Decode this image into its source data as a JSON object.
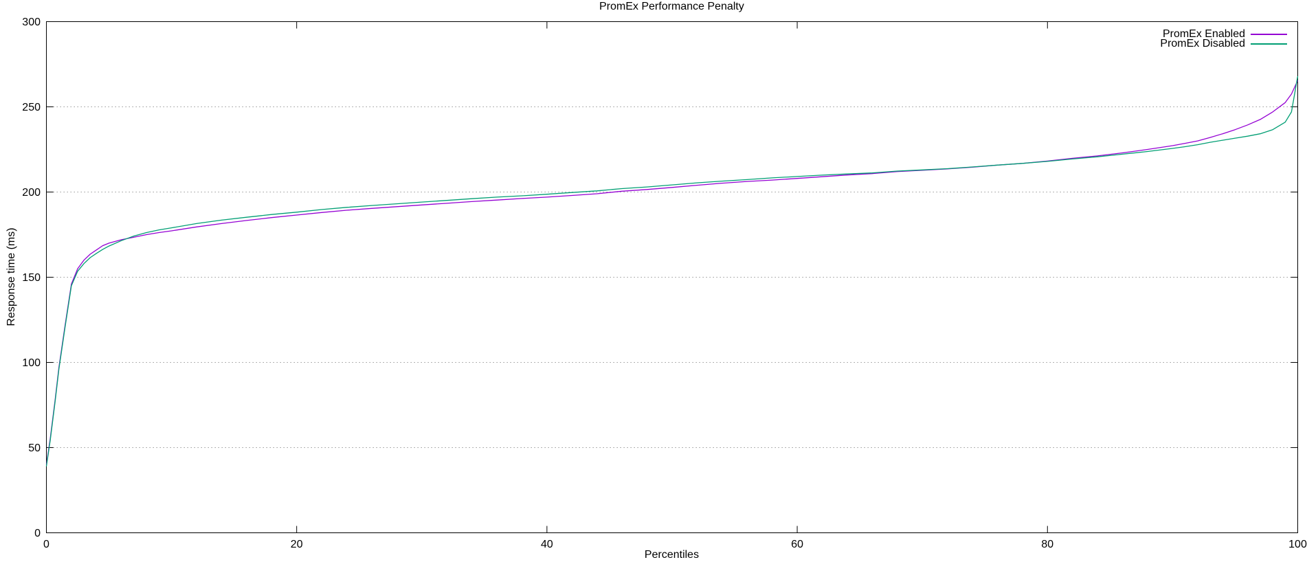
{
  "chart_data": {
    "type": "line",
    "title": "PromEx Performance Penalty",
    "xlabel": "Percentiles",
    "ylabel": "Response time (ms)",
    "xlim": [
      0,
      100
    ],
    "ylim": [
      0,
      300
    ],
    "xticks": [
      0,
      20,
      40,
      60,
      80,
      100
    ],
    "yticks": [
      0,
      50,
      100,
      150,
      200,
      250,
      300
    ],
    "grid": "horizontal-dotted-lines-at-yticks",
    "legend_position": "top-right-inside",
    "colors": {
      "axis": "#000000",
      "grid": "#999999",
      "background": "#ffffff"
    },
    "series": [
      {
        "name": "PromEx Enabled",
        "color": "#9400D3",
        "points": [
          [
            0,
            40
          ],
          [
            0.3,
            55
          ],
          [
            0.7,
            78
          ],
          [
            1,
            97
          ],
          [
            1.5,
            122
          ],
          [
            2,
            146
          ],
          [
            2.5,
            155
          ],
          [
            3,
            160
          ],
          [
            3.5,
            163.5
          ],
          [
            4,
            166
          ],
          [
            4.5,
            168.5
          ],
          [
            5,
            170
          ],
          [
            6,
            172
          ],
          [
            7,
            173.5
          ],
          [
            8,
            175
          ],
          [
            9,
            176.2
          ],
          [
            10,
            177.2
          ],
          [
            12,
            179.5
          ],
          [
            14,
            181.5
          ],
          [
            16,
            183.3
          ],
          [
            18,
            185
          ],
          [
            20,
            186.5
          ],
          [
            22,
            188
          ],
          [
            24,
            189.3
          ],
          [
            26,
            190.4
          ],
          [
            28,
            191.4
          ],
          [
            30,
            192.4
          ],
          [
            32,
            193.4
          ],
          [
            34,
            194.4
          ],
          [
            36,
            195.3
          ],
          [
            38,
            196.2
          ],
          [
            40,
            197
          ],
          [
            42,
            198
          ],
          [
            44,
            199
          ],
          [
            46,
            200.5
          ],
          [
            48,
            201.5
          ],
          [
            50,
            202.7
          ],
          [
            52,
            204
          ],
          [
            54,
            205.2
          ],
          [
            56,
            206.2
          ],
          [
            58,
            207
          ],
          [
            60,
            208
          ],
          [
            62,
            209
          ],
          [
            64,
            210
          ],
          [
            66,
            210.8
          ],
          [
            68,
            212
          ],
          [
            70,
            212.8
          ],
          [
            72,
            213.6
          ],
          [
            74,
            214.6
          ],
          [
            76,
            215.8
          ],
          [
            78,
            216.8
          ],
          [
            80,
            218.2
          ],
          [
            82,
            219.8
          ],
          [
            84,
            221.2
          ],
          [
            86,
            223
          ],
          [
            88,
            225
          ],
          [
            90,
            227.2
          ],
          [
            91,
            228.6
          ],
          [
            92,
            230
          ],
          [
            93,
            232
          ],
          [
            94,
            234.2
          ],
          [
            95,
            236.6
          ],
          [
            96,
            239.4
          ],
          [
            97,
            242.6
          ],
          [
            98,
            247
          ],
          [
            99,
            252.5
          ],
          [
            99.5,
            257.5
          ],
          [
            100,
            265.5
          ]
        ]
      },
      {
        "name": "PromEx Disabled",
        "color": "#009E73",
        "points": [
          [
            0,
            39
          ],
          [
            0.3,
            54
          ],
          [
            0.7,
            77
          ],
          [
            1,
            96
          ],
          [
            1.5,
            121
          ],
          [
            2,
            145
          ],
          [
            2.5,
            153.5
          ],
          [
            3,
            158
          ],
          [
            3.5,
            161.5
          ],
          [
            4,
            164
          ],
          [
            4.5,
            166.3
          ],
          [
            5,
            168.3
          ],
          [
            6,
            171.5
          ],
          [
            7,
            174.2
          ],
          [
            8,
            176.2
          ],
          [
            9,
            177.8
          ],
          [
            10,
            179
          ],
          [
            12,
            181.5
          ],
          [
            14,
            183.5
          ],
          [
            16,
            185.2
          ],
          [
            18,
            186.8
          ],
          [
            20,
            188.2
          ],
          [
            22,
            189.7
          ],
          [
            24,
            191
          ],
          [
            26,
            192.1
          ],
          [
            28,
            193.1
          ],
          [
            30,
            194.1
          ],
          [
            32,
            195.1
          ],
          [
            34,
            196.1
          ],
          [
            36,
            197
          ],
          [
            38,
            197.8
          ],
          [
            40,
            198.7
          ],
          [
            42,
            199.7
          ],
          [
            44,
            200.7
          ],
          [
            46,
            202
          ],
          [
            48,
            203
          ],
          [
            50,
            204.2
          ],
          [
            52,
            205.4
          ],
          [
            54,
            206.4
          ],
          [
            56,
            207.3
          ],
          [
            58,
            208.3
          ],
          [
            60,
            209.1
          ],
          [
            62,
            209.9
          ],
          [
            64,
            210.6
          ],
          [
            66,
            211.2
          ],
          [
            68,
            212.3
          ],
          [
            70,
            213
          ],
          [
            72,
            213.7
          ],
          [
            74,
            214.7
          ],
          [
            76,
            215.8
          ],
          [
            78,
            216.8
          ],
          [
            80,
            218
          ],
          [
            82,
            219.4
          ],
          [
            84,
            220.7
          ],
          [
            86,
            222.2
          ],
          [
            88,
            223.8
          ],
          [
            90,
            225.6
          ],
          [
            91,
            226.6
          ],
          [
            92,
            227.8
          ],
          [
            93,
            229.2
          ],
          [
            94,
            230.4
          ],
          [
            95,
            231.6
          ],
          [
            96,
            232.8
          ],
          [
            97,
            234.2
          ],
          [
            98,
            236.6
          ],
          [
            99,
            241
          ],
          [
            99.5,
            247
          ],
          [
            100,
            268
          ]
        ]
      }
    ]
  }
}
